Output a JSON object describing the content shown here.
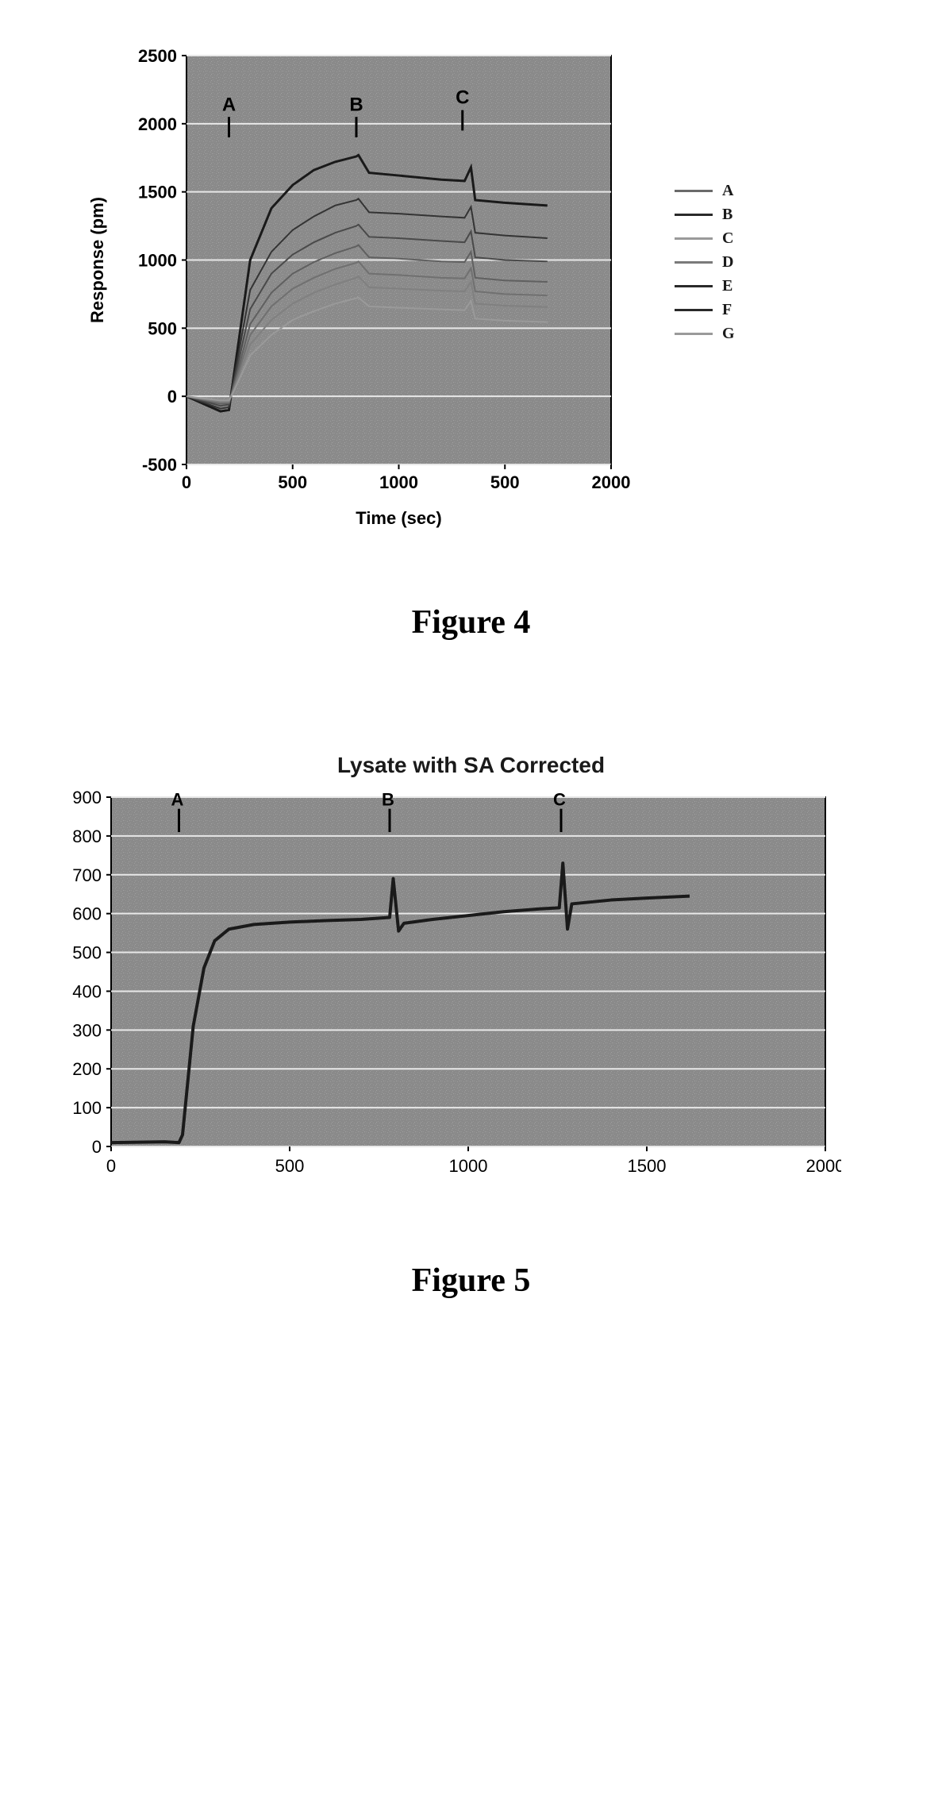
{
  "figure4": {
    "caption": "Figure 4",
    "type": "line",
    "xlabel": "Time (sec)",
    "ylabel": "Response (pm)",
    "label_fontsize": 22,
    "label_fontweight": "bold",
    "tick_fontsize": 22,
    "tick_fontweight": "bold",
    "xlim": [
      0,
      2000
    ],
    "ylim": [
      -500,
      2500
    ],
    "xticks": [
      0,
      500,
      1000,
      500,
      2000
    ],
    "yticks": [
      -500,
      0,
      500,
      1000,
      1500,
      2000,
      2500
    ],
    "plot_background": "#8a8a8a",
    "plot_noise_overlay": "#9a9a9a",
    "gridline_color": "#e8e8e8",
    "axis_color": "#000000",
    "legend_labels": [
      "A",
      "B",
      "C",
      "D",
      "E",
      "F",
      "G"
    ],
    "legend_line_colors": [
      "#6a6a6a",
      "#2a2a2a",
      "#9a9a9a",
      "#7a7a7a",
      "#2a2a2a",
      "#2a2a2a",
      "#9a9a9a"
    ],
    "markers": [
      {
        "label": "A",
        "x": 200,
        "y_from": 2050,
        "y_to": 1900,
        "color": "#000000"
      },
      {
        "label": "B",
        "x": 800,
        "y_from": 2050,
        "y_to": 1900,
        "color": "#000000"
      },
      {
        "label": "C",
        "x": 1300,
        "y_from": 2100,
        "y_to": 1950,
        "color": "#000000"
      }
    ],
    "series": [
      {
        "color": "#1a1a1a",
        "width": 3,
        "points": [
          [
            0,
            0
          ],
          [
            160,
            -110
          ],
          [
            200,
            -100
          ],
          [
            220,
            120
          ],
          [
            300,
            1000
          ],
          [
            400,
            1380
          ],
          [
            500,
            1550
          ],
          [
            600,
            1660
          ],
          [
            700,
            1720
          ],
          [
            800,
            1760
          ],
          [
            810,
            1770
          ],
          [
            860,
            1640
          ],
          [
            1000,
            1620
          ],
          [
            1200,
            1590
          ],
          [
            1310,
            1580
          ],
          [
            1340,
            1680
          ],
          [
            1360,
            1440
          ],
          [
            1500,
            1420
          ],
          [
            1700,
            1400
          ]
        ]
      },
      {
        "color": "#343434",
        "width": 2,
        "points": [
          [
            0,
            0
          ],
          [
            160,
            -90
          ],
          [
            200,
            -80
          ],
          [
            220,
            100
          ],
          [
            300,
            780
          ],
          [
            400,
            1060
          ],
          [
            500,
            1220
          ],
          [
            600,
            1320
          ],
          [
            700,
            1400
          ],
          [
            800,
            1440
          ],
          [
            810,
            1450
          ],
          [
            860,
            1350
          ],
          [
            1000,
            1340
          ],
          [
            1200,
            1320
          ],
          [
            1310,
            1310
          ],
          [
            1340,
            1390
          ],
          [
            1360,
            1200
          ],
          [
            1500,
            1180
          ],
          [
            1700,
            1160
          ]
        ]
      },
      {
        "color": "#4a4a4a",
        "width": 2,
        "points": [
          [
            0,
            0
          ],
          [
            160,
            -70
          ],
          [
            200,
            -60
          ],
          [
            220,
            80
          ],
          [
            300,
            640
          ],
          [
            400,
            900
          ],
          [
            500,
            1040
          ],
          [
            600,
            1130
          ],
          [
            700,
            1200
          ],
          [
            800,
            1250
          ],
          [
            810,
            1260
          ],
          [
            860,
            1170
          ],
          [
            1000,
            1160
          ],
          [
            1200,
            1140
          ],
          [
            1310,
            1130
          ],
          [
            1340,
            1210
          ],
          [
            1360,
            1020
          ],
          [
            1500,
            1000
          ],
          [
            1700,
            990
          ]
        ]
      },
      {
        "color": "#606060",
        "width": 2,
        "points": [
          [
            0,
            0
          ],
          [
            160,
            -55
          ],
          [
            200,
            -50
          ],
          [
            220,
            60
          ],
          [
            300,
            530
          ],
          [
            400,
            760
          ],
          [
            500,
            900
          ],
          [
            600,
            985
          ],
          [
            700,
            1050
          ],
          [
            800,
            1100
          ],
          [
            810,
            1110
          ],
          [
            860,
            1020
          ],
          [
            1000,
            1010
          ],
          [
            1200,
            990
          ],
          [
            1310,
            985
          ],
          [
            1340,
            1060
          ],
          [
            1360,
            870
          ],
          [
            1500,
            850
          ],
          [
            1700,
            840
          ]
        ]
      },
      {
        "color": "#707070",
        "width": 2,
        "points": [
          [
            0,
            0
          ],
          [
            160,
            -48
          ],
          [
            200,
            -45
          ],
          [
            220,
            50
          ],
          [
            300,
            450
          ],
          [
            400,
            660
          ],
          [
            500,
            790
          ],
          [
            600,
            870
          ],
          [
            700,
            935
          ],
          [
            800,
            980
          ],
          [
            810,
            990
          ],
          [
            860,
            900
          ],
          [
            1000,
            890
          ],
          [
            1200,
            870
          ],
          [
            1310,
            865
          ],
          [
            1340,
            940
          ],
          [
            1360,
            770
          ],
          [
            1500,
            750
          ],
          [
            1700,
            740
          ]
        ]
      },
      {
        "color": "#808080",
        "width": 2,
        "points": [
          [
            0,
            0
          ],
          [
            160,
            -40
          ],
          [
            200,
            -38
          ],
          [
            220,
            40
          ],
          [
            300,
            380
          ],
          [
            400,
            560
          ],
          [
            500,
            680
          ],
          [
            600,
            760
          ],
          [
            700,
            820
          ],
          [
            800,
            870
          ],
          [
            810,
            880
          ],
          [
            860,
            800
          ],
          [
            1000,
            790
          ],
          [
            1200,
            775
          ],
          [
            1310,
            770
          ],
          [
            1340,
            840
          ],
          [
            1360,
            680
          ],
          [
            1500,
            665
          ],
          [
            1700,
            655
          ]
        ]
      },
      {
        "color": "#9a9a9a",
        "width": 2,
        "points": [
          [
            0,
            0
          ],
          [
            160,
            -30
          ],
          [
            200,
            -30
          ],
          [
            220,
            30
          ],
          [
            300,
            300
          ],
          [
            400,
            450
          ],
          [
            500,
            560
          ],
          [
            600,
            625
          ],
          [
            700,
            680
          ],
          [
            800,
            720
          ],
          [
            810,
            725
          ],
          [
            860,
            660
          ],
          [
            1000,
            650
          ],
          [
            1200,
            638
          ],
          [
            1310,
            632
          ],
          [
            1340,
            700
          ],
          [
            1360,
            570
          ],
          [
            1500,
            555
          ],
          [
            1700,
            545
          ]
        ]
      }
    ]
  },
  "figure5": {
    "caption": "Figure 5",
    "title": "Lysate with SA Corrected",
    "type": "line",
    "xlim": [
      0,
      2000
    ],
    "ylim": [
      0,
      900
    ],
    "xticks": [
      0,
      500,
      1000,
      1500,
      2000
    ],
    "yticks": [
      0,
      100,
      200,
      300,
      400,
      500,
      600,
      700,
      800,
      900
    ],
    "tick_fontsize": 22,
    "plot_background": "#8a8a8a",
    "gridline_color": "#e8e8e8",
    "axis_color": "#000000",
    "markers": [
      {
        "label": "A",
        "x": 190,
        "y_from": 870,
        "y_to": 810,
        "color": "#000000"
      },
      {
        "label": "B",
        "x": 780,
        "y_from": 870,
        "y_to": 810,
        "color": "#000000"
      },
      {
        "label": "C",
        "x": 1260,
        "y_from": 870,
        "y_to": 810,
        "color": "#000000"
      }
    ],
    "series": [
      {
        "color": "#1a1a1a",
        "width": 4,
        "points": [
          [
            0,
            10
          ],
          [
            150,
            12
          ],
          [
            190,
            10
          ],
          [
            200,
            30
          ],
          [
            230,
            310
          ],
          [
            260,
            460
          ],
          [
            290,
            530
          ],
          [
            330,
            560
          ],
          [
            400,
            572
          ],
          [
            500,
            578
          ],
          [
            600,
            582
          ],
          [
            700,
            585
          ],
          [
            780,
            590
          ],
          [
            790,
            690
          ],
          [
            805,
            555
          ],
          [
            820,
            575
          ],
          [
            900,
            585
          ],
          [
            1000,
            595
          ],
          [
            1100,
            605
          ],
          [
            1200,
            612
          ],
          [
            1255,
            615
          ],
          [
            1265,
            730
          ],
          [
            1278,
            560
          ],
          [
            1290,
            625
          ],
          [
            1400,
            635
          ],
          [
            1500,
            640
          ],
          [
            1620,
            645
          ]
        ]
      }
    ]
  }
}
